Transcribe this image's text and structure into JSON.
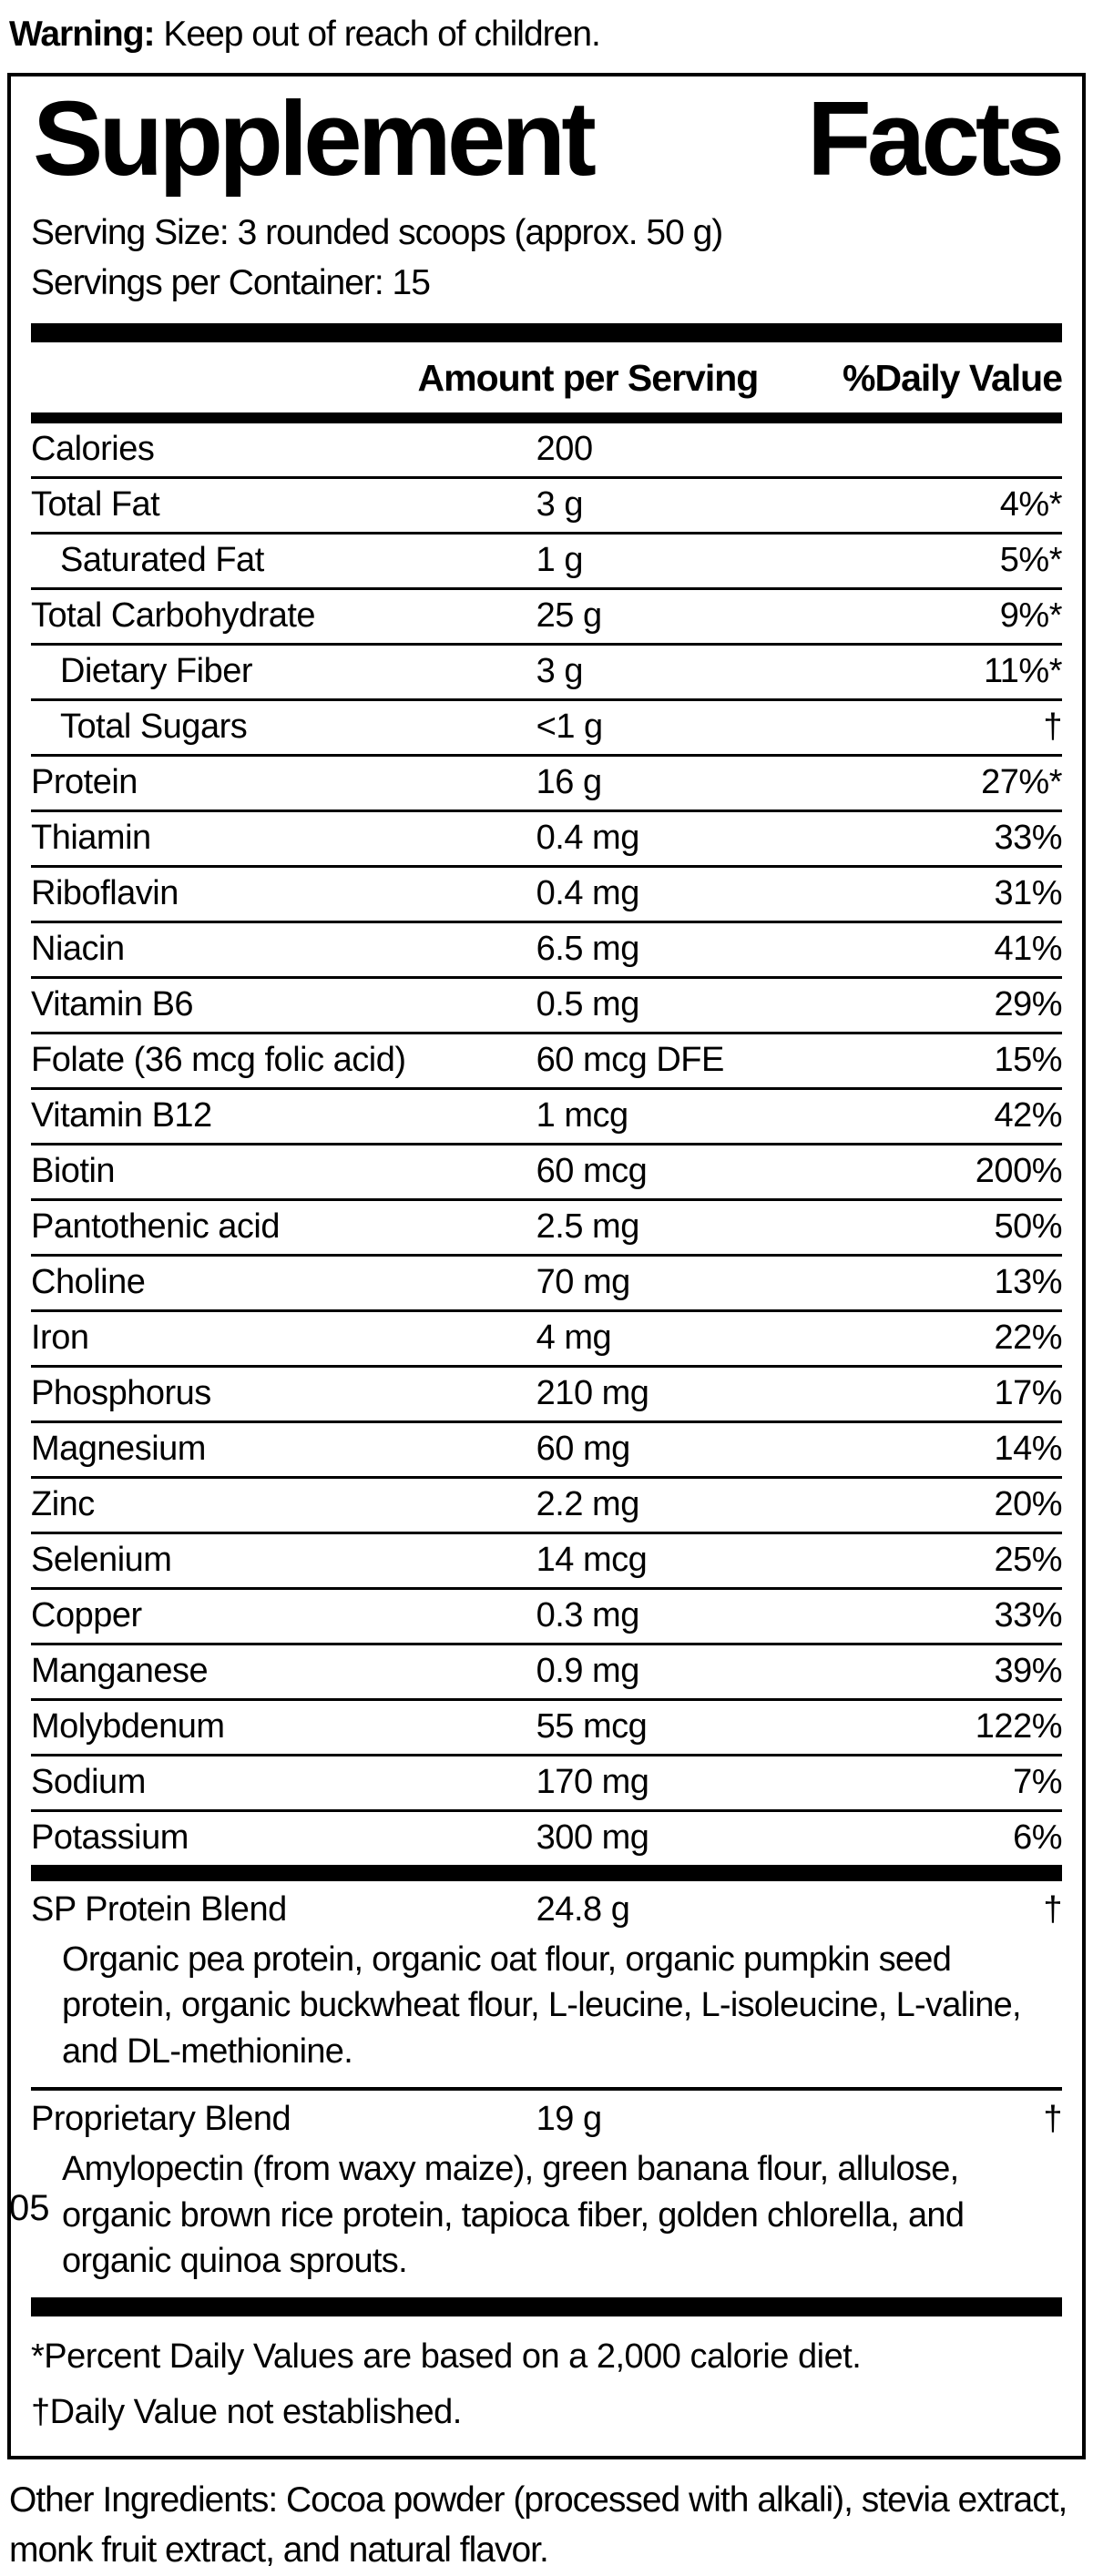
{
  "colors": {
    "text": "#000000",
    "background": "#ffffff"
  },
  "warning": {
    "label": "Warning:",
    "text": " Keep out of reach of children."
  },
  "panel": {
    "title_left": "Supplement",
    "title_right": "Facts",
    "serving_size": "Serving Size: 3 rounded scoops (approx. 50 g)",
    "servings_per_container": "Servings per Container: 15",
    "columns": {
      "amount": "Amount per Serving",
      "daily_value": "%Daily Value"
    },
    "rows": [
      {
        "name": "Calories",
        "amount": "200",
        "dv": "",
        "indent": false
      },
      {
        "name": "Total Fat",
        "amount": "3 g",
        "dv": "4%*",
        "indent": false
      },
      {
        "name": "Saturated Fat",
        "amount": "1 g",
        "dv": "5%*",
        "indent": true
      },
      {
        "name": "Total Carbohydrate",
        "amount": "25 g",
        "dv": "9%*",
        "indent": false
      },
      {
        "name": "Dietary Fiber",
        "amount": "3 g",
        "dv": "11%*",
        "indent": true
      },
      {
        "name": "Total Sugars",
        "amount": "<1 g",
        "dv": "†",
        "indent": true
      },
      {
        "name": "Protein",
        "amount": "16 g",
        "dv": "27%*",
        "indent": false
      },
      {
        "name": "Thiamin",
        "amount": "0.4 mg",
        "dv": "33%",
        "indent": false
      },
      {
        "name": "Riboflavin",
        "amount": "0.4 mg",
        "dv": "31%",
        "indent": false
      },
      {
        "name": "Niacin",
        "amount": "6.5 mg",
        "dv": "41%",
        "indent": false
      },
      {
        "name": "Vitamin B6",
        "amount": "0.5 mg",
        "dv": "29%",
        "indent": false
      },
      {
        "name": "Folate (36 mcg folic acid)",
        "amount": "60 mcg DFE",
        "dv": "15%",
        "indent": false
      },
      {
        "name": "Vitamin B12",
        "amount": "1 mcg",
        "dv": "42%",
        "indent": false
      },
      {
        "name": "Biotin",
        "amount": "60 mcg",
        "dv": "200%",
        "indent": false
      },
      {
        "name": "Pantothenic acid",
        "amount": "2.5 mg",
        "dv": "50%",
        "indent": false
      },
      {
        "name": "Choline",
        "amount": "70 mg",
        "dv": "13%",
        "indent": false
      },
      {
        "name": "Iron",
        "amount": "4 mg",
        "dv": "22%",
        "indent": false
      },
      {
        "name": "Phosphorus",
        "amount": "210 mg",
        "dv": "17%",
        "indent": false
      },
      {
        "name": "Magnesium",
        "amount": "60 mg",
        "dv": "14%",
        "indent": false
      },
      {
        "name": "Zinc",
        "amount": "2.2 mg",
        "dv": "20%",
        "indent": false
      },
      {
        "name": "Selenium",
        "amount": "14 mcg",
        "dv": "25%",
        "indent": false
      },
      {
        "name": "Copper",
        "amount": "0.3 mg",
        "dv": "33%",
        "indent": false
      },
      {
        "name": "Manganese",
        "amount": "0.9 mg",
        "dv": "39%",
        "indent": false
      },
      {
        "name": "Molybdenum",
        "amount": "55 mcg",
        "dv": "122%",
        "indent": false
      },
      {
        "name": "Sodium",
        "amount": "170 mg",
        "dv": "7%",
        "indent": false
      },
      {
        "name": "Potassium",
        "amount": "300 mg",
        "dv": "6%",
        "indent": false
      }
    ],
    "blends": [
      {
        "name": "SP Protein Blend",
        "amount": "24.8 g",
        "dv": "†",
        "description": "Organic pea protein, organic oat flour, organic pumpkin seed protein, organic buckwheat flour, L-leucine, L-isoleucine, L-valine, and DL-methionine."
      },
      {
        "name": "Proprietary Blend",
        "amount": "19 g",
        "dv": "†",
        "description": "Amylopectin (from waxy maize), green banana flour, allulose, organic brown rice protein, tapioca fiber, golden chlorella, and organic quinoa sprouts."
      }
    ],
    "footnotes": [
      "*Percent Daily Values are based on a 2,000 calorie diet.",
      "†Daily Value not established."
    ]
  },
  "other_ingredients": "Other Ingredients: Cocoa powder (processed with alkali), stevia extract, monk fruit extract, and natural flavor.",
  "page_number": "05"
}
